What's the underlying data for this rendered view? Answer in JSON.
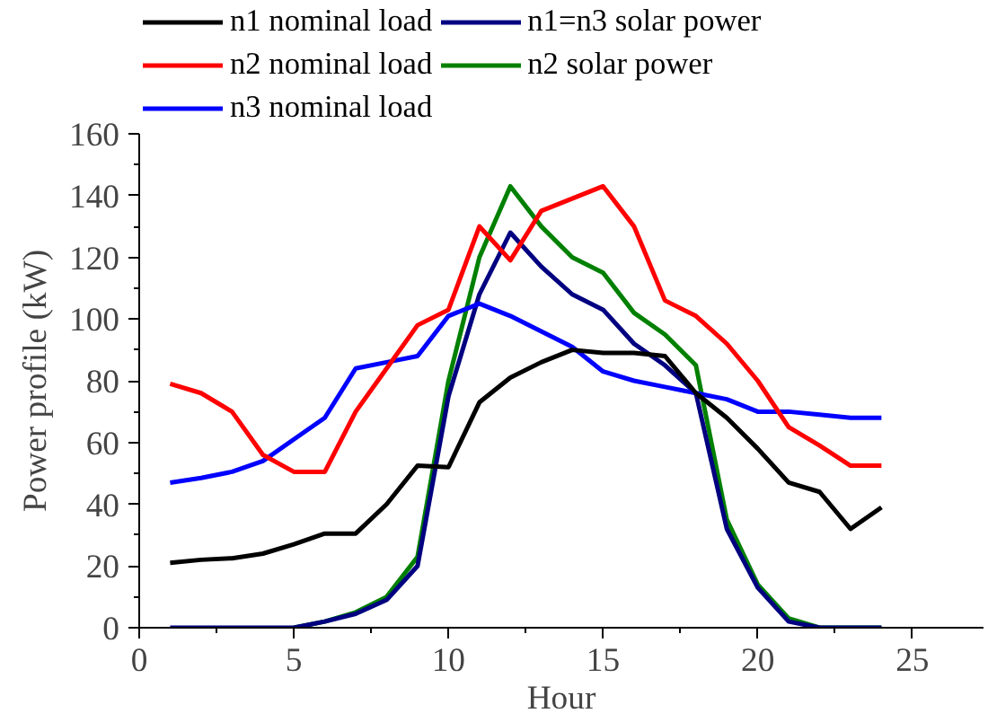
{
  "chart_data": {
    "type": "line",
    "xlabel": "Hour",
    "ylabel": "Power profile (kW)",
    "x": [
      1,
      2,
      3,
      4,
      5,
      6,
      7,
      8,
      9,
      10,
      11,
      12,
      13,
      14,
      15,
      16,
      17,
      18,
      19,
      20,
      21,
      22,
      23,
      24
    ],
    "series": [
      {
        "name": "n1 nominal load",
        "color": "#000000",
        "values": [
          21,
          22,
          22.5,
          24,
          27,
          30.5,
          30.5,
          40,
          52.5,
          52,
          73,
          81,
          86,
          90,
          89,
          89,
          88,
          76,
          68,
          58,
          47,
          44,
          32,
          39
        ]
      },
      {
        "name": "n2 nominal load",
        "color": "#ff0000",
        "values": [
          79,
          76,
          70,
          56,
          50.5,
          50.5,
          70,
          84,
          98,
          103,
          130,
          119,
          135,
          139,
          143,
          130,
          106,
          101,
          92,
          80,
          65,
          59,
          52.5,
          52.5
        ]
      },
      {
        "name": "n3 nominal load",
        "color": "#0000ff",
        "values": [
          47,
          48.5,
          50.5,
          54,
          61,
          68,
          84,
          86,
          88,
          101,
          105,
          101,
          96,
          91,
          83,
          80,
          78,
          76,
          74,
          70,
          70,
          69,
          68,
          68
        ]
      },
      {
        "name": "n1=n3 solar power",
        "color": "#000080",
        "values": [
          0,
          0,
          0,
          0,
          0,
          2,
          4.5,
          9,
          20,
          75,
          108,
          128,
          117,
          108,
          103,
          92,
          85,
          76,
          32,
          13,
          2,
          0,
          0,
          0
        ]
      },
      {
        "name": "n2 solar power",
        "color": "#008000",
        "values": [
          null,
          null,
          null,
          null,
          0,
          2,
          5,
          10,
          23,
          80,
          120,
          143,
          130,
          120,
          115,
          102,
          95,
          85,
          35,
          14,
          3,
          0,
          0,
          0
        ]
      }
    ],
    "xlim": [
      0,
      27.3
    ],
    "ylim": [
      0,
      160
    ],
    "xticks": [
      0,
      5,
      10,
      15,
      20,
      25
    ],
    "yticks": [
      0,
      20,
      40,
      60,
      80,
      100,
      120,
      140,
      160
    ],
    "grid": false,
    "legend": "top",
    "marker": "none",
    "line_style": "solid"
  }
}
